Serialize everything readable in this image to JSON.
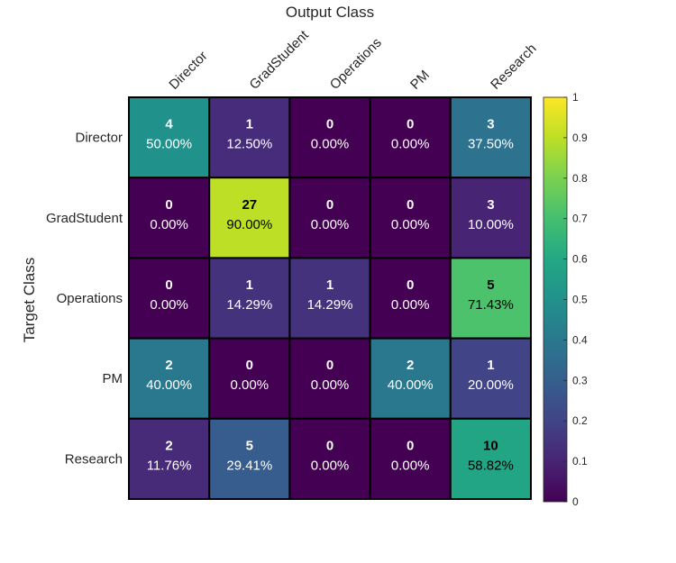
{
  "chart_data": {
    "type": "heatmap",
    "title": "Output Class",
    "xlabel": "Output Class",
    "ylabel": "Target Class",
    "x_categories": [
      "Director",
      "GradStudent",
      "Operations",
      "PM",
      "Research"
    ],
    "y_categories": [
      "Director",
      "GradStudent",
      "Operations",
      "PM",
      "Research"
    ],
    "counts": [
      [
        4,
        1,
        0,
        0,
        3
      ],
      [
        0,
        27,
        0,
        0,
        3
      ],
      [
        0,
        1,
        1,
        0,
        5
      ],
      [
        2,
        0,
        0,
        2,
        1
      ],
      [
        2,
        5,
        0,
        0,
        10
      ]
    ],
    "percentages": [
      [
        "50.00%",
        "12.50%",
        "0.00%",
        "0.00%",
        "37.50%"
      ],
      [
        "0.00%",
        "90.00%",
        "0.00%",
        "0.00%",
        "10.00%"
      ],
      [
        "0.00%",
        "14.29%",
        "14.29%",
        "0.00%",
        "71.43%"
      ],
      [
        "40.00%",
        "0.00%",
        "0.00%",
        "40.00%",
        "20.00%"
      ],
      [
        "11.76%",
        "29.41%",
        "0.00%",
        "0.00%",
        "58.82%"
      ]
    ],
    "colorbar": {
      "colormap": "viridis",
      "range": [
        0,
        1
      ],
      "ticks": [
        "0",
        "0.1",
        "0.2",
        "0.3",
        "0.4",
        "0.5",
        "0.6",
        "0.7",
        "0.8",
        "0.9",
        "1"
      ]
    },
    "grid": true
  }
}
